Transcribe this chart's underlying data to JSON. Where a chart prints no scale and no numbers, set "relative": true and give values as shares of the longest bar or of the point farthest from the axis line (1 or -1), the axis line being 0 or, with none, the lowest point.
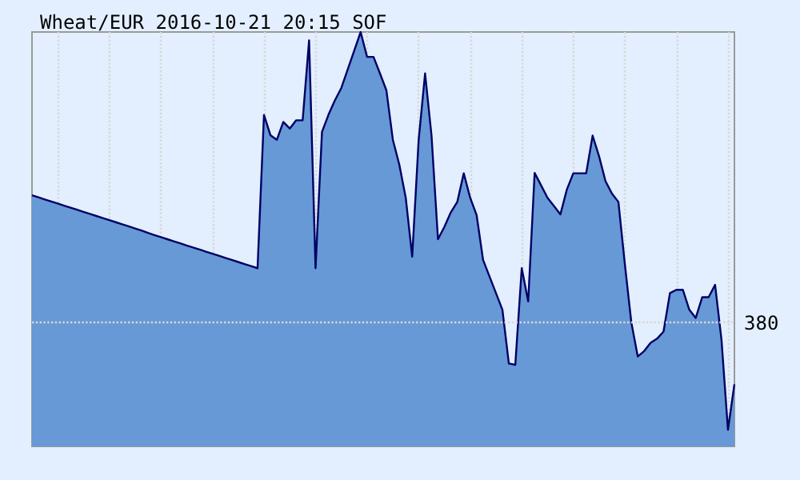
{
  "chart_data": {
    "type": "area",
    "title": "Wheat/EUR 2016-10-21 20:15 SOF",
    "relative": true,
    "grid": "x",
    "categories": [
      null,
      null,
      null,
      null,
      null,
      null,
      null,
      null,
      null,
      null,
      null,
      null,
      null,
      null,
      null,
      null,
      null,
      null,
      null,
      null,
      null,
      null,
      null,
      null,
      null,
      null,
      null,
      null,
      null,
      null,
      null,
      null,
      null,
      null,
      null,
      null,
      null,
      null,
      null,
      null,
      null,
      null,
      null,
      null,
      null,
      null,
      null,
      null,
      null,
      null,
      null,
      null,
      null,
      null,
      null,
      null,
      null,
      null,
      null,
      null,
      null,
      null,
      null,
      null,
      null,
      null,
      null,
      null,
      null,
      null,
      null,
      null,
      null,
      null,
      null,
      null,
      null,
      null,
      null,
      null,
      null,
      null,
      null,
      null,
      null,
      null,
      null,
      null,
      null,
      null,
      null,
      null,
      null,
      null,
      null,
      null,
      null,
      null,
      null,
      null,
      null,
      null,
      null,
      null,
      null,
      null,
      null,
      null,
      null,
      null
    ],
    "ref_lines": [
      {
        "axis": "y",
        "value": 0.297,
        "color": "#d8d8d8",
        "line_style": "dotted"
      }
    ],
    "annotations": [
      "380"
    ],
    "series": [
      {
        "color": "#000066",
        "values": [
          0.606,
          0.601,
          0.596,
          0.591,
          0.586,
          0.581,
          0.576,
          0.571,
          0.566,
          0.561,
          0.556,
          0.551,
          0.546,
          0.541,
          0.536,
          0.531,
          0.526,
          0.521,
          0.515,
          0.51,
          0.505,
          0.5,
          0.495,
          0.49,
          0.485,
          0.48,
          0.475,
          0.47,
          0.465,
          0.46,
          0.455,
          0.45,
          0.445,
          0.44,
          0.435,
          0.43,
          0.8,
          0.751,
          0.74,
          0.783,
          0.767,
          0.787,
          0.787,
          0.98,
          0.43,
          0.759,
          0.8,
          0.835,
          0.865,
          0.91,
          0.955,
          1,
          0.94,
          0.94,
          0.9,
          0.859,
          0.74,
          0.68,
          0.6,
          0.458,
          0.739,
          0.9,
          0.75,
          0.5,
          0.53,
          0.565,
          0.59,
          0.659,
          0.6,
          0.558,
          0.45,
          0.41,
          0.37,
          0.33,
          0.2,
          0.197,
          0.43,
          0.35,
          0.66,
          0.63,
          0.6,
          0.58,
          0.56,
          0.62,
          0.659,
          0.659,
          0.659,
          0.75,
          0.7,
          0.64,
          0.61,
          0.59,
          0.44,
          0.3,
          0.217,
          0.23,
          0.25,
          0.26,
          0.277,
          0.37,
          0.378,
          0.378,
          0.33,
          0.31,
          0.36,
          0.36,
          0.39,
          0.257,
          0.04,
          0.15
        ]
      }
    ]
  }
}
